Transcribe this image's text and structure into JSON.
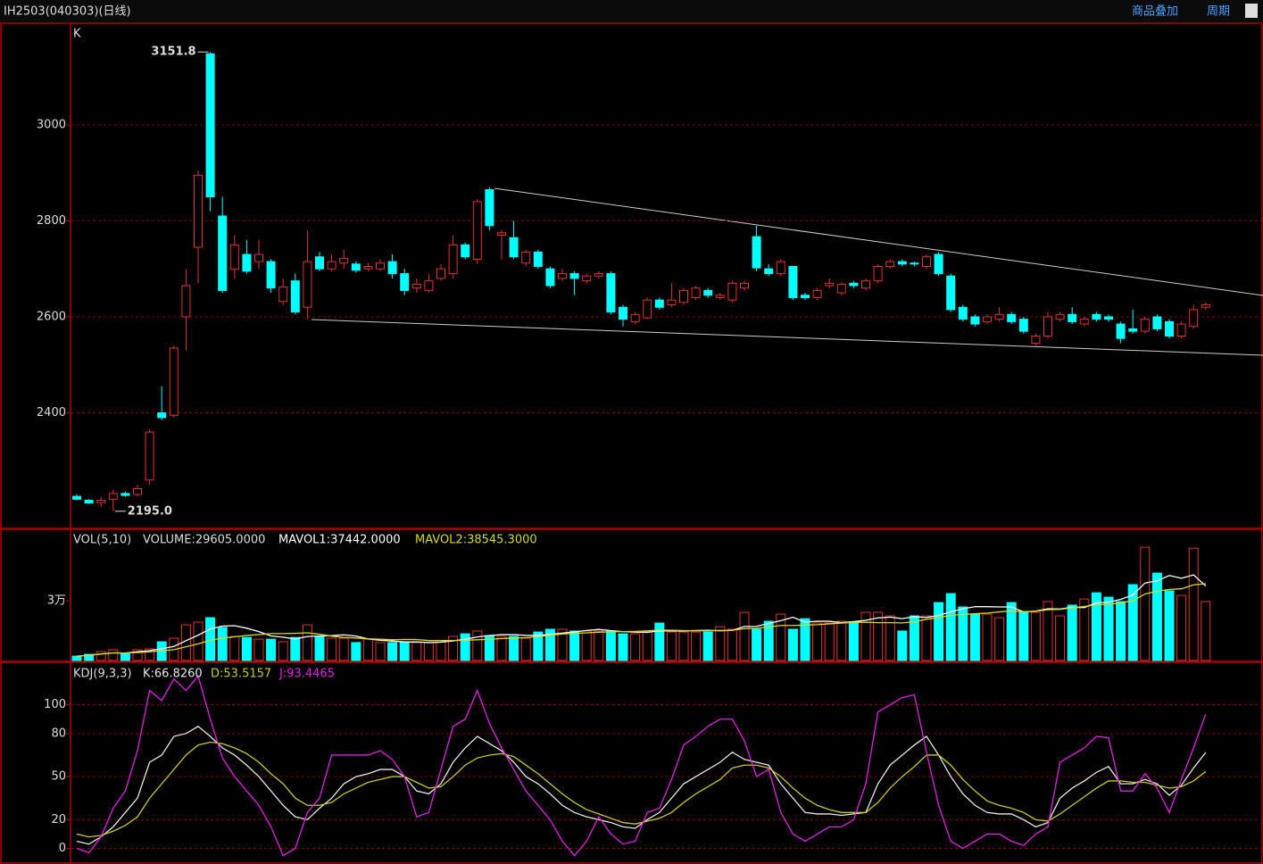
{
  "header": {
    "title": "IH2503(040303)(日线)",
    "menu": [
      "商品叠加",
      "周期"
    ]
  },
  "chart_data": [
    {
      "type": "candlestick",
      "label": "K",
      "up_color": "#e03030",
      "down_color": "#00ffff",
      "open": [
        2226,
        2218,
        2213,
        2220,
        2232,
        2230,
        2260,
        2400,
        2395,
        2600,
        2745,
        3148,
        2810,
        2699,
        2730,
        2715,
        2715,
        2632,
        2675,
        2620,
        2725,
        2700,
        2712,
        2710,
        2700,
        2700,
        2715,
        2690,
        2660,
        2655,
        2680,
        2690,
        2750,
        2720,
        2865,
        2770,
        2765,
        2712,
        2735,
        2700,
        2680,
        2690,
        2675,
        2685,
        2690,
        2620,
        2590,
        2598,
        2635,
        2625,
        2630,
        2640,
        2655,
        2640,
        2635,
        2660,
        2767,
        2700,
        2690,
        2705,
        2645,
        2640,
        2665,
        2650,
        2670,
        2660,
        2675,
        2705,
        2715,
        2712,
        2705,
        2730,
        2685,
        2620,
        2600,
        2590,
        2595,
        2605,
        2595,
        2545,
        2560,
        2595,
        2605,
        2585,
        2605,
        2600,
        2585,
        2575,
        2570,
        2600,
        2590,
        2560,
        2580,
        2620
      ],
      "high": [
        2230,
        2220,
        2225,
        2240,
        2236,
        2250,
        2365,
        2455,
        2540,
        2700,
        2905,
        3151.8,
        2850,
        2770,
        2760,
        2760,
        2720,
        2680,
        2690,
        2780,
        2735,
        2730,
        2740,
        2715,
        2712,
        2720,
        2730,
        2700,
        2680,
        2690,
        2710,
        2770,
        2755,
        2845,
        2870,
        2780,
        2800,
        2740,
        2740,
        2705,
        2700,
        2695,
        2690,
        2695,
        2695,
        2625,
        2610,
        2640,
        2640,
        2670,
        2660,
        2665,
        2660,
        2650,
        2675,
        2675,
        2790,
        2710,
        2720,
        2705,
        2650,
        2660,
        2680,
        2672,
        2675,
        2680,
        2710,
        2720,
        2720,
        2715,
        2730,
        2735,
        2690,
        2625,
        2605,
        2605,
        2620,
        2610,
        2600,
        2565,
        2610,
        2610,
        2620,
        2600,
        2610,
        2605,
        2590,
        2615,
        2600,
        2605,
        2595,
        2590,
        2625,
        2630
      ],
      "low": [
        2218,
        2210,
        2205,
        2195,
        2225,
        2226,
        2250,
        2385,
        2390,
        2530,
        2670,
        2820,
        2650,
        2680,
        2690,
        2700,
        2650,
        2625,
        2605,
        2595,
        2695,
        2695,
        2700,
        2692,
        2695,
        2695,
        2680,
        2645,
        2650,
        2650,
        2675,
        2680,
        2720,
        2710,
        2780,
        2720,
        2720,
        2705,
        2700,
        2660,
        2675,
        2645,
        2670,
        2680,
        2605,
        2580,
        2585,
        2595,
        2615,
        2620,
        2625,
        2635,
        2640,
        2635,
        2630,
        2655,
        2695,
        2685,
        2685,
        2635,
        2635,
        2635,
        2660,
        2645,
        2660,
        2655,
        2670,
        2700,
        2705,
        2705,
        2700,
        2685,
        2610,
        2590,
        2580,
        2585,
        2590,
        2585,
        2565,
        2540,
        2555,
        2590,
        2585,
        2580,
        2590,
        2590,
        2545,
        2565,
        2565,
        2570,
        2555,
        2555,
        2575,
        2615
      ],
      "close": [
        2220,
        2212,
        2218,
        2232,
        2228,
        2242,
        2360,
        2390,
        2535,
        2665,
        2895,
        2850,
        2655,
        2750,
        2695,
        2730,
        2660,
        2662,
        2610,
        2715,
        2700,
        2715,
        2722,
        2697,
        2705,
        2712,
        2690,
        2655,
        2668,
        2675,
        2700,
        2750,
        2725,
        2840,
        2790,
        2775,
        2725,
        2735,
        2705,
        2665,
        2690,
        2680,
        2685,
        2690,
        2610,
        2595,
        2605,
        2635,
        2620,
        2635,
        2655,
        2660,
        2645,
        2645,
        2670,
        2670,
        2702,
        2690,
        2715,
        2640,
        2640,
        2655,
        2670,
        2668,
        2665,
        2675,
        2705,
        2715,
        2710,
        2710,
        2725,
        2690,
        2615,
        2595,
        2585,
        2600,
        2605,
        2590,
        2570,
        2560,
        2600,
        2605,
        2590,
        2595,
        2595,
        2595,
        2555,
        2570,
        2595,
        2575,
        2560,
        2585,
        2615,
        2625
      ],
      "ylim": [
        2163,
        3208
      ],
      "yticks": [
        2400,
        2600,
        2800,
        3000
      ],
      "grid": true,
      "annotations": [
        {
          "value": 3151.8,
          "label": "3151.8"
        },
        {
          "value": 2195,
          "label": "2195.0"
        }
      ]
    },
    {
      "type": "bar",
      "label": "VOL(5,10)",
      "value_label": "VOLUME:29605.0000",
      "values": [
        2200,
        3100,
        4500,
        5400,
        3600,
        5400,
        5800,
        9400,
        11200,
        17900,
        19300,
        21500,
        16600,
        12100,
        11600,
        10700,
        10700,
        9400,
        11600,
        17900,
        12100,
        11200,
        11200,
        9000,
        10700,
        9000,
        9000,
        9000,
        9000,
        9000,
        9900,
        12100,
        13400,
        14800,
        12500,
        12100,
        12100,
        11200,
        14300,
        15700,
        15700,
        14800,
        14800,
        14800,
        14800,
        13400,
        13400,
        14300,
        18800,
        14300,
        14300,
        14300,
        14300,
        17000,
        15700,
        24200,
        15700,
        19700,
        23300,
        15700,
        21000,
        18800,
        18800,
        19700,
        19300,
        24200,
        24200,
        22400,
        14800,
        22400,
        22400,
        29100,
        33600,
        26900,
        23300,
        23300,
        21500,
        29100,
        24600,
        24200,
        29600,
        22400,
        27800,
        30900,
        34000,
        31800,
        29600,
        38100,
        56900,
        43900,
        35000,
        32700,
        56400,
        29605
      ],
      "series": [
        {
          "name": "MAVOL1:37442.0000",
          "color": "#ffffff",
          "values": [
            2200,
            2650,
            3270,
            3800,
            3760,
            4400,
            4940,
            5920,
            7080,
            9940,
            12720,
            15860,
            17300,
            17480,
            16220,
            14500,
            12340,
            11700,
            10800,
            12060,
            12340,
            12460,
            12900,
            12280,
            10840,
            10180,
            9780,
            9340,
            9340,
            9000,
            9180,
            9800,
            10680,
            11840,
            12540,
            12980,
            12980,
            12640,
            12580,
            13160,
            13800,
            14340,
            15060,
            15600,
            15000,
            14500,
            14240,
            14140,
            14940,
            14840,
            14820,
            15040,
            15200,
            14940,
            15120,
            17100,
            17160,
            18580,
            20000,
            21720,
            19280,
            19700,
            19700,
            19000,
            19520,
            20160,
            21400,
            21780,
            21000,
            22000,
            21640,
            22600,
            24460,
            25960,
            27060,
            27040,
            26900,
            26900,
            24400,
            24800,
            26000,
            25900,
            26700,
            26600,
            28900,
            29300,
            30700,
            32900,
            38900,
            40000,
            42700,
            41300,
            43000,
            37442
          ]
        },
        {
          "name": "MAVOL2:38545.3000",
          "color": "#d8d820",
          "values": [
            2200,
            2650,
            3270,
            3800,
            3760,
            3980,
            4360,
            4860,
            5440,
            6870,
            8330,
            10180,
            11220,
            11890,
            12580,
            13000,
            13520,
            13520,
            13640,
            13910,
            13200,
            12200,
            11600,
            11290,
            10900,
            10700,
            10400,
            10600,
            10500,
            10000,
            10000,
            10000,
            10200,
            10400,
            10700,
            11000,
            11300,
            11500,
            12000,
            12700,
            13300,
            13600,
            13900,
            14200,
            14400,
            14500,
            14600,
            14900,
            15300,
            15200,
            15000,
            14900,
            14900,
            15100,
            15200,
            16000,
            16200,
            16800,
            17600,
            17600,
            17800,
            18000,
            18400,
            18800,
            19200,
            19200,
            19000,
            19000,
            18900,
            19400,
            20700,
            21500,
            22700,
            23100,
            23500,
            23800,
            24400,
            25000,
            24400,
            24700,
            25500,
            25700,
            26500,
            27100,
            28000,
            28200,
            29000,
            30000,
            33400,
            34800,
            35700,
            36000,
            38000,
            38545.3
          ]
        }
      ],
      "ylim": [
        0,
        65000
      ],
      "yticks": [
        {
          "value": 30000,
          "label": "3万"
        }
      ]
    },
    {
      "type": "line",
      "label": "KDJ(9,3,3)",
      "series": [
        {
          "name": "K:66.8260",
          "color": "#e8e8e8",
          "values": [
            5,
            3,
            8,
            15,
            25,
            35,
            60,
            65,
            78,
            80,
            85,
            78,
            70,
            65,
            58,
            50,
            40,
            30,
            22,
            20,
            28,
            35,
            45,
            50,
            52,
            55,
            55,
            50,
            40,
            38,
            45,
            60,
            70,
            78,
            73,
            68,
            60,
            50,
            45,
            38,
            30,
            25,
            22,
            20,
            18,
            15,
            14,
            20,
            25,
            35,
            45,
            50,
            55,
            60,
            67,
            62,
            60,
            58,
            45,
            35,
            25,
            24,
            24,
            23,
            24,
            25,
            45,
            58,
            65,
            72,
            78,
            65,
            50,
            38,
            30,
            25,
            24,
            24,
            20,
            15,
            18,
            35,
            42,
            47,
            53,
            57,
            45,
            45,
            48,
            45,
            37,
            44,
            56,
            66.826
          ]
        },
        {
          "name": "D:53.5157",
          "color": "#c8c820",
          "values": [
            10,
            8,
            9,
            12,
            16,
            22,
            35,
            45,
            55,
            65,
            72,
            74,
            73,
            70,
            66,
            60,
            52,
            45,
            35,
            30,
            30,
            32,
            38,
            42,
            46,
            48,
            50,
            50,
            46,
            42,
            43,
            50,
            58,
            63,
            65,
            66,
            64,
            58,
            52,
            45,
            38,
            32,
            27,
            24,
            21,
            18,
            17,
            19,
            21,
            25,
            32,
            38,
            43,
            48,
            56,
            58,
            58,
            56,
            50,
            42,
            35,
            30,
            27,
            25,
            25,
            25,
            32,
            42,
            50,
            57,
            65,
            65,
            58,
            48,
            40,
            33,
            30,
            28,
            25,
            20,
            19,
            24,
            30,
            36,
            42,
            47,
            47,
            46,
            46,
            44,
            42,
            43,
            47,
            53.5157
          ]
        },
        {
          "name": "J:93.4465",
          "color": "#e020e0",
          "values": [
            0,
            -3,
            8,
            28,
            40,
            68,
            110,
            103,
            118,
            110,
            120,
            90,
            63,
            50,
            40,
            30,
            15,
            -5,
            0,
            25,
            35,
            65,
            65,
            65,
            65,
            68,
            62,
            50,
            22,
            25,
            55,
            85,
            90,
            110,
            87,
            70,
            55,
            40,
            30,
            20,
            5,
            -5,
            5,
            22,
            10,
            3,
            5,
            25,
            28,
            48,
            72,
            78,
            85,
            90,
            90,
            75,
            50,
            55,
            25,
            10,
            5,
            10,
            15,
            15,
            20,
            45,
            95,
            100,
            105,
            107,
            67,
            30,
            5,
            0,
            5,
            10,
            10,
            5,
            2,
            10,
            15,
            60,
            65,
            70,
            78,
            77,
            40,
            40,
            52,
            42,
            25,
            48,
            70,
            93.4465
          ]
        }
      ],
      "ylim": [
        -9,
        129
      ],
      "yticks": [
        0,
        20,
        50,
        80,
        100
      ],
      "grid": true
    }
  ]
}
